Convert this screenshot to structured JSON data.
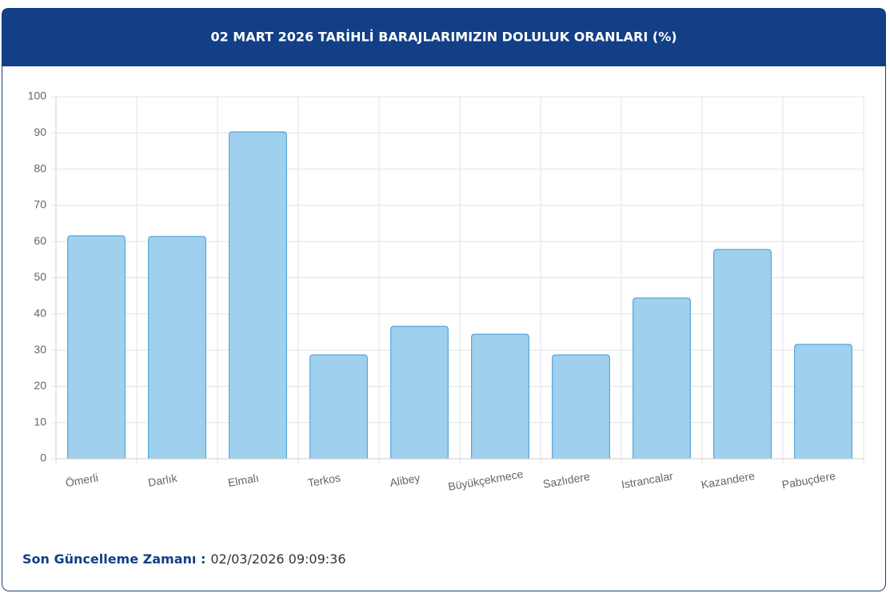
{
  "chart_data": {
    "type": "bar",
    "title": "02 MART 2026 TARİHLİ BARAJLARIMIZIN DOLULUK ORANLARI (%)",
    "categories": [
      "Ömerli",
      "Darlık",
      "Elmalı",
      "Terkos",
      "Alibey",
      "Büyükçekmece",
      "Sazlıdere",
      "Istrancalar",
      "Kazandere",
      "Pabuçdere"
    ],
    "values": [
      61.6,
      61.4,
      90.3,
      28.7,
      36.6,
      34.4,
      28.7,
      44.4,
      57.8,
      31.6
    ],
    "color": "#9fd0ee",
    "edge_color": "#3d9ad3",
    "ylim": [
      0,
      100
    ],
    "yticks": [
      0,
      10,
      20,
      30,
      40,
      50,
      60,
      70,
      80,
      90,
      100
    ],
    "grid": true
  },
  "footer": {
    "label": "Son Güncelleme Zamanı :",
    "value": "02/03/2026 09:09:36"
  }
}
